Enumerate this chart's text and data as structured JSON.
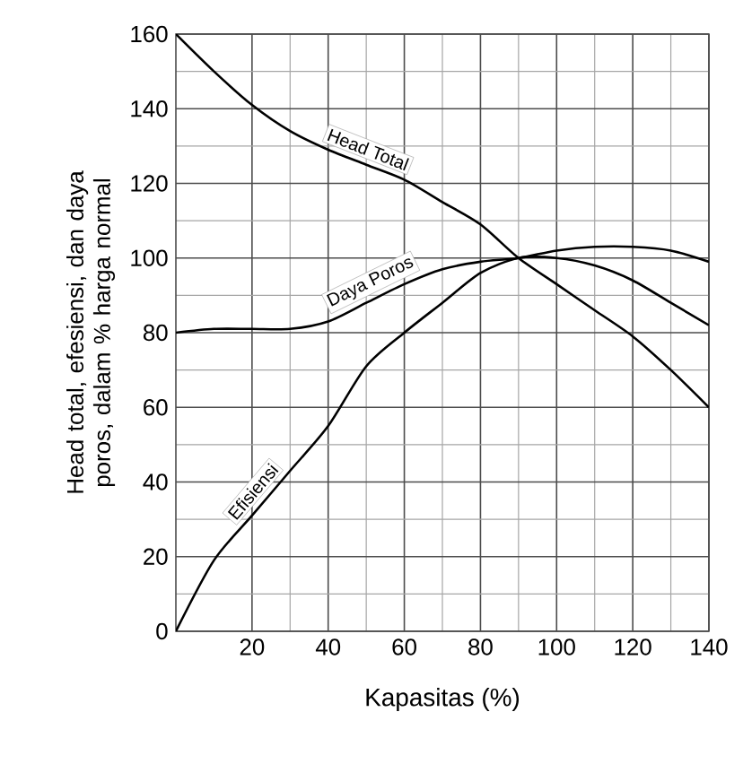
{
  "chart_data": {
    "type": "line",
    "xlabel": "Kapasitas (%)",
    "ylabel": "Head total, efesiensi, dan daya poros, dalam % harga normal",
    "xlim": [
      0,
      140
    ],
    "ylim": [
      0,
      160
    ],
    "xticks": [
      20,
      40,
      60,
      80,
      100,
      120,
      140
    ],
    "yticks": [
      0,
      20,
      40,
      60,
      80,
      100,
      120,
      140,
      160
    ],
    "grid": true,
    "marker": "none",
    "line_style": "solid",
    "legend": false,
    "series": [
      {
        "name": "Head Total",
        "color": "#000000",
        "x": [
          0,
          10,
          20,
          30,
          40,
          50,
          60,
          70,
          80,
          90,
          100,
          110,
          120,
          130,
          140
        ],
        "values": [
          160,
          150,
          141,
          134,
          129,
          125,
          121,
          115,
          109,
          100,
          93,
          86,
          79,
          70,
          60
        ]
      },
      {
        "name": "Daya Poros",
        "color": "#000000",
        "x": [
          0,
          10,
          20,
          30,
          40,
          50,
          60,
          70,
          80,
          90,
          100,
          110,
          120,
          130,
          140
        ],
        "values": [
          80,
          81,
          81,
          81,
          83,
          88,
          93,
          97,
          99,
          100,
          102,
          103,
          103,
          102,
          99
        ]
      },
      {
        "name": "Efisiensi",
        "color": "#000000",
        "x": [
          0,
          10,
          20,
          30,
          40,
          50,
          60,
          70,
          80,
          90,
          100,
          110,
          120,
          130,
          140
        ],
        "values": [
          0,
          19,
          31,
          43,
          55,
          71,
          80,
          88,
          96,
          100,
          100,
          98,
          94,
          88,
          82
        ]
      }
    ]
  }
}
